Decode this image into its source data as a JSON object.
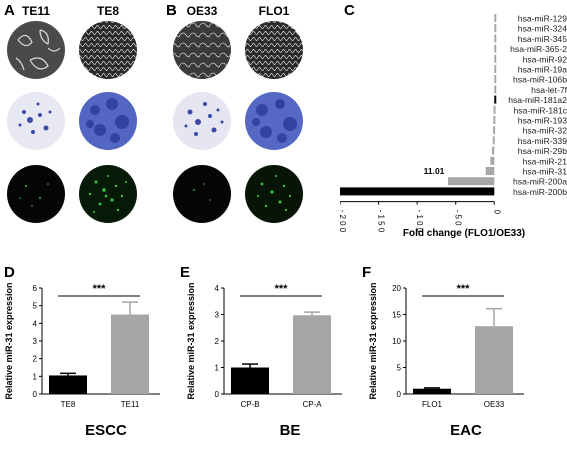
{
  "panels": {
    "A": {
      "label": "A",
      "cols": [
        "TE11",
        "TE8"
      ]
    },
    "B": {
      "label": "B",
      "cols": [
        "OE33",
        "FLO1"
      ]
    },
    "C": {
      "label": "C"
    },
    "D": {
      "label": "D"
    },
    "E": {
      "label": "E"
    },
    "F": {
      "label": "F"
    }
  },
  "annotation_c": "11.01",
  "conditions": [
    "ESCC",
    "BE",
    "EAC"
  ],
  "colors": {
    "black_bar": "#000000",
    "grey_bar": "#a6a6a6",
    "stain_blue": "#3a4aa8",
    "fluor_green": "#3cc24a"
  },
  "chart_data": [
    {
      "id": "C",
      "type": "bar",
      "orientation": "horizontal",
      "categories": [
        "hsa-miR-129",
        "hsa-miR-324",
        "hsa-miR-345",
        "hsa-miR-365-2",
        "hsa-miR-92",
        "hsa-miR-19a",
        "hsa-miR-106b",
        "hsa-let-7f",
        "hsa-miR-181a2",
        "hsa-miR-181c",
        "hsa-miR-193",
        "hsa-miR-32",
        "hsa-miR-339",
        "hsa-miR-29b",
        "hsa-miR-21",
        "hsa-miR-31",
        "hsa-miR-200a",
        "hsa-miR-200b"
      ],
      "values": [
        1.5,
        1.0,
        0.8,
        0.6,
        0.6,
        0.5,
        0.6,
        0.5,
        0.5,
        -1.0,
        -1.2,
        -1.5,
        -2.0,
        -3.0,
        -5.0,
        -11.01,
        -60,
        -200
      ],
      "colors": [
        "#a6a6a6",
        "#a6a6a6",
        "#a6a6a6",
        "#a6a6a6",
        "#a6a6a6",
        "#a6a6a6",
        "#a6a6a6",
        "#a6a6a6",
        "#000000",
        "#a6a6a6",
        "#a6a6a6",
        "#a6a6a6",
        "#a6a6a6",
        "#a6a6a6",
        "#a6a6a6",
        "#a6a6a6",
        "#a6a6a6",
        "#000000"
      ],
      "xticks": [
        -200,
        -150,
        -100,
        -50,
        0
      ],
      "xtick_labels": [
        "- 2 0 0",
        "- 1 5 0",
        "- 1 0 0",
        "- 5 0",
        "0"
      ],
      "xlim": [
        -200,
        10
      ],
      "xlabel": "Fold change (FLO1/OE33)"
    },
    {
      "id": "D",
      "type": "bar",
      "categories": [
        "TE8",
        "TE11"
      ],
      "values": [
        1.05,
        4.5
      ],
      "errors": [
        0.12,
        0.7
      ],
      "colors": [
        "#000000",
        "#a6a6a6"
      ],
      "ylabel": "Relative miR-31 expression",
      "ylim": [
        0,
        6
      ],
      "yticks": [
        0,
        1,
        2,
        3,
        4,
        5,
        6
      ],
      "significance": "***"
    },
    {
      "id": "E",
      "type": "bar",
      "categories": [
        "CP-B",
        "CP-A"
      ],
      "values": [
        1.0,
        2.97
      ],
      "errors": [
        0.13,
        0.12
      ],
      "colors": [
        "#000000",
        "#a6a6a6"
      ],
      "ylabel": "Relative miR-31 expression",
      "ylim": [
        0,
        4
      ],
      "yticks": [
        0,
        1,
        2,
        3,
        4
      ],
      "significance": "***"
    },
    {
      "id": "F",
      "type": "bar",
      "categories": [
        "FLO1",
        "OE33"
      ],
      "values": [
        1.0,
        12.8
      ],
      "errors": [
        0.15,
        3.3
      ],
      "colors": [
        "#000000",
        "#a6a6a6"
      ],
      "ylabel": "Relative miR-31 expression",
      "ylim": [
        0,
        20
      ],
      "yticks": [
        0,
        5,
        10,
        15,
        20
      ],
      "significance": "***"
    }
  ]
}
